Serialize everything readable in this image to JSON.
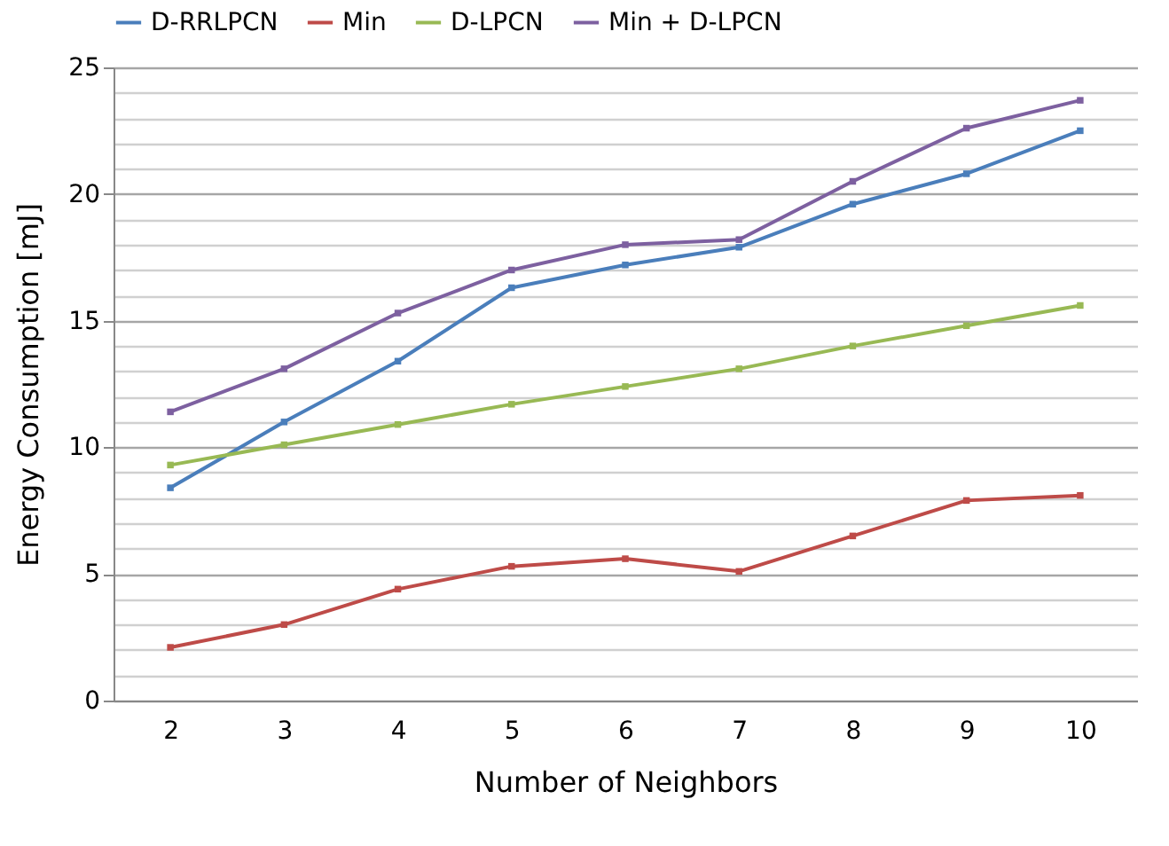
{
  "chart_data": {
    "type": "line",
    "xlabel": "Number of Neighbors",
    "ylabel": "Energy Consumption [mJ]",
    "categories": [
      "2",
      "3",
      "4",
      "5",
      "6",
      "7",
      "8",
      "9",
      "10"
    ],
    "series": [
      {
        "name": "D-RRLPCN",
        "color": "#4a7ebb",
        "values": [
          8.4,
          11.0,
          13.4,
          16.3,
          17.2,
          17.9,
          19.6,
          20.8,
          22.5
        ]
      },
      {
        "name": "Min",
        "color": "#be4b48",
        "values": [
          2.1,
          3.0,
          4.4,
          5.3,
          5.6,
          5.1,
          6.5,
          7.9,
          8.1
        ]
      },
      {
        "name": "D-LPCN",
        "color": "#98b954",
        "values": [
          9.3,
          10.1,
          10.9,
          11.7,
          12.4,
          13.1,
          14.0,
          14.8,
          15.6
        ]
      },
      {
        "name": "Min + D-LPCN",
        "color": "#7d60a0",
        "values": [
          11.4,
          13.1,
          15.3,
          17.0,
          18.0,
          18.2,
          20.5,
          22.6,
          23.7
        ]
      }
    ],
    "ylim": [
      0,
      25
    ],
    "yticks": [
      0,
      {
        "value": 1,
        "label": null
      },
      {
        "value": 2,
        "label": null
      },
      {
        "value": 3,
        "label": null
      },
      {
        "value": 4,
        "label": null
      },
      5,
      {
        "value": 6,
        "label": null
      },
      {
        "value": 7,
        "label": null
      },
      {
        "value": 8,
        "label": null
      },
      {
        "value": 9,
        "label": null
      },
      10,
      {
        "value": 11,
        "label": null
      },
      {
        "value": 12,
        "label": null
      },
      {
        "value": 13,
        "label": null
      },
      {
        "value": 14,
        "label": null
      },
      15,
      {
        "value": 16,
        "label": null
      },
      {
        "value": 17,
        "label": null
      },
      {
        "value": 18,
        "label": null
      },
      {
        "value": 19,
        "label": null
      },
      20,
      {
        "value": 21,
        "label": null
      },
      {
        "value": 22,
        "label": null
      },
      {
        "value": 23,
        "label": null
      },
      {
        "value": 24,
        "label": null
      },
      25
    ],
    "grid": true,
    "legend": "top",
    "marker": "square",
    "line_style": "solid"
  }
}
